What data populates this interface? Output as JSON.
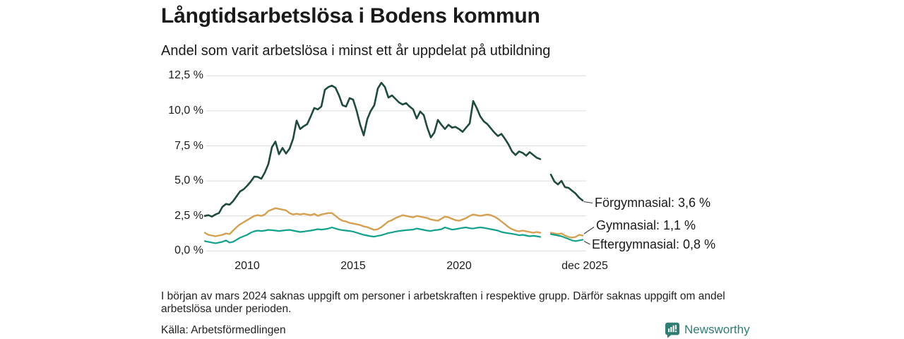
{
  "header": {
    "title": "Långtidsarbetslösa i Bodens kommun",
    "subtitle": "Andel som varit arbetslösa i minst ett år uppdelat på utbildning"
  },
  "chart_data": {
    "type": "line",
    "title": "Långtidsarbetslösa i Bodens kommun",
    "subtitle": "Andel som varit arbetslösa i minst ett år uppdelat på utbildning",
    "grid": "horizontal-only",
    "legend_position": "end-of-line-labels",
    "ylim": [
      0,
      12.5
    ],
    "xlim": [
      2008,
      2026.1
    ],
    "y_unit": "%",
    "decimal_style": "comma",
    "gap_note": "values missing from early mars 2024 (shown as line break)",
    "y_ticks": [
      {
        "label": "12,5 %",
        "value": 12.5
      },
      {
        "label": "10,0 %",
        "value": 10.0
      },
      {
        "label": "7,5 %",
        "value": 7.5
      },
      {
        "label": "5,0 %",
        "value": 5.0
      },
      {
        "label": "2,5 %",
        "value": 2.5
      },
      {
        "label": "0,0 %",
        "value": 0.0
      }
    ],
    "x_ticks": [
      {
        "label": "2010",
        "year": 2010
      },
      {
        "label": "2015",
        "year": 2015
      },
      {
        "label": "2020",
        "year": 2020
      },
      {
        "label": "dec 2025",
        "year": 2025.92
      }
    ],
    "series": [
      {
        "name": "Förgymnasial",
        "end_label": "Förgymnasial: 3,6 %",
        "end_value": 3.6,
        "color": "#1e4b3d",
        "width": 2.6,
        "start": 2008.0,
        "step": 0.166667,
        "values": [
          2.5,
          2.55,
          2.45,
          2.6,
          2.7,
          3.15,
          3.35,
          3.3,
          3.55,
          3.9,
          4.25,
          4.4,
          4.65,
          4.95,
          5.3,
          5.28,
          5.15,
          5.6,
          6.2,
          7.4,
          7.8,
          6.9,
          7.35,
          6.95,
          7.3,
          8.0,
          9.3,
          8.7,
          8.9,
          9.05,
          9.6,
          10.2,
          10.1,
          10.3,
          11.5,
          11.7,
          11.8,
          11.65,
          11.1,
          10.4,
          10.3,
          10.9,
          10.8,
          10.0,
          9.0,
          8.25,
          9.4,
          10.0,
          10.4,
          11.6,
          12.0,
          11.7,
          10.95,
          11.1,
          10.85,
          10.6,
          10.45,
          10.55,
          10.3,
          10.1,
          9.45,
          9.95,
          9.7,
          8.8,
          8.1,
          8.45,
          9.35,
          9.0,
          8.7,
          9.0,
          8.8,
          8.85,
          8.7,
          8.5,
          8.8,
          9.1,
          10.7,
          10.2,
          9.6,
          9.25,
          9.05,
          8.75,
          8.45,
          8.2,
          8.35,
          8.0,
          7.6,
          7.1,
          6.85,
          7.1,
          7.0,
          6.8,
          7.05,
          6.85,
          6.65,
          6.55,
          null,
          null,
          5.45,
          4.95,
          4.75,
          5.0,
          4.55,
          4.5,
          4.3,
          4.1,
          3.8,
          3.6
        ]
      },
      {
        "name": "Gymnasial",
        "end_label": "Gymnasial: 1,1 %",
        "end_value": 1.1,
        "color": "#d5a04f",
        "width": 2.4,
        "start": 2008.0,
        "step": 0.166667,
        "values": [
          1.3,
          1.15,
          1.1,
          1.05,
          1.1,
          1.15,
          1.25,
          1.2,
          1.45,
          1.7,
          1.9,
          2.05,
          2.2,
          2.35,
          2.5,
          2.55,
          2.5,
          2.6,
          2.85,
          2.95,
          3.05,
          3.0,
          2.95,
          2.9,
          2.7,
          2.6,
          2.65,
          2.6,
          2.65,
          2.6,
          2.55,
          2.65,
          2.5,
          2.6,
          2.65,
          2.7,
          2.7,
          2.5,
          2.3,
          2.15,
          2.1,
          2.0,
          1.95,
          1.9,
          1.85,
          1.75,
          1.7,
          1.6,
          1.5,
          1.55,
          1.7,
          1.9,
          2.1,
          2.2,
          2.35,
          2.45,
          2.55,
          2.5,
          2.45,
          2.4,
          2.5,
          2.45,
          2.4,
          2.35,
          2.25,
          2.2,
          2.15,
          2.3,
          2.45,
          2.4,
          2.3,
          2.2,
          2.15,
          2.25,
          2.35,
          2.5,
          2.6,
          2.55,
          2.5,
          2.55,
          2.6,
          2.55,
          2.45,
          2.3,
          2.1,
          1.9,
          1.7,
          1.55,
          1.45,
          1.4,
          1.45,
          1.4,
          1.35,
          1.3,
          1.35,
          1.3,
          null,
          null,
          1.3,
          1.25,
          1.2,
          1.25,
          1.1,
          1.0,
          0.95,
          1.0,
          1.15,
          1.1
        ]
      },
      {
        "name": "Eftergymnasial",
        "end_label": "Eftergymnasial: 0,8 %",
        "end_value": 0.8,
        "color": "#12a18c",
        "width": 2.2,
        "start": 2008.0,
        "step": 0.166667,
        "values": [
          0.7,
          0.65,
          0.6,
          0.55,
          0.6,
          0.65,
          0.75,
          0.6,
          0.65,
          0.8,
          0.95,
          1.05,
          1.15,
          1.3,
          1.4,
          1.45,
          1.42,
          1.45,
          1.5,
          1.48,
          1.45,
          1.42,
          1.45,
          1.48,
          1.5,
          1.45,
          1.4,
          1.35,
          1.38,
          1.42,
          1.45,
          1.5,
          1.55,
          1.52,
          1.55,
          1.6,
          1.68,
          1.6,
          1.52,
          1.48,
          1.45,
          1.42,
          1.38,
          1.3,
          1.22,
          1.15,
          1.1,
          1.05,
          1.02,
          1.08,
          1.12,
          1.2,
          1.28,
          1.32,
          1.38,
          1.42,
          1.45,
          1.48,
          1.5,
          1.52,
          1.6,
          1.55,
          1.5,
          1.45,
          1.42,
          1.48,
          1.5,
          1.55,
          1.68,
          1.6,
          1.52,
          1.55,
          1.6,
          1.65,
          1.68,
          1.62,
          1.6,
          1.65,
          1.68,
          1.65,
          1.6,
          1.55,
          1.5,
          1.45,
          1.35,
          1.3,
          1.26,
          1.22,
          1.18,
          1.12,
          1.15,
          1.1,
          1.05,
          1.08,
          1.05,
          1.0,
          null,
          null,
          1.2,
          1.15,
          1.1,
          1.05,
          0.95,
          0.85,
          0.75,
          0.7,
          0.75,
          0.8
        ]
      }
    ]
  },
  "footnote": {
    "text": "I början av mars 2024 saknas uppgift om personer i arbetskraften i respektive grupp. Därför saknas uppgift om andel arbetslösa under perioden."
  },
  "source": {
    "text": "Källa: Arbetsförmedlingen"
  },
  "logo": {
    "text": "Newsworthy",
    "color": "#2e7e74"
  },
  "colors": {
    "grid": "#dcdcdc",
    "text": "#1a1a1a",
    "connector": "#3c3c3c",
    "background": "#ffffff"
  }
}
